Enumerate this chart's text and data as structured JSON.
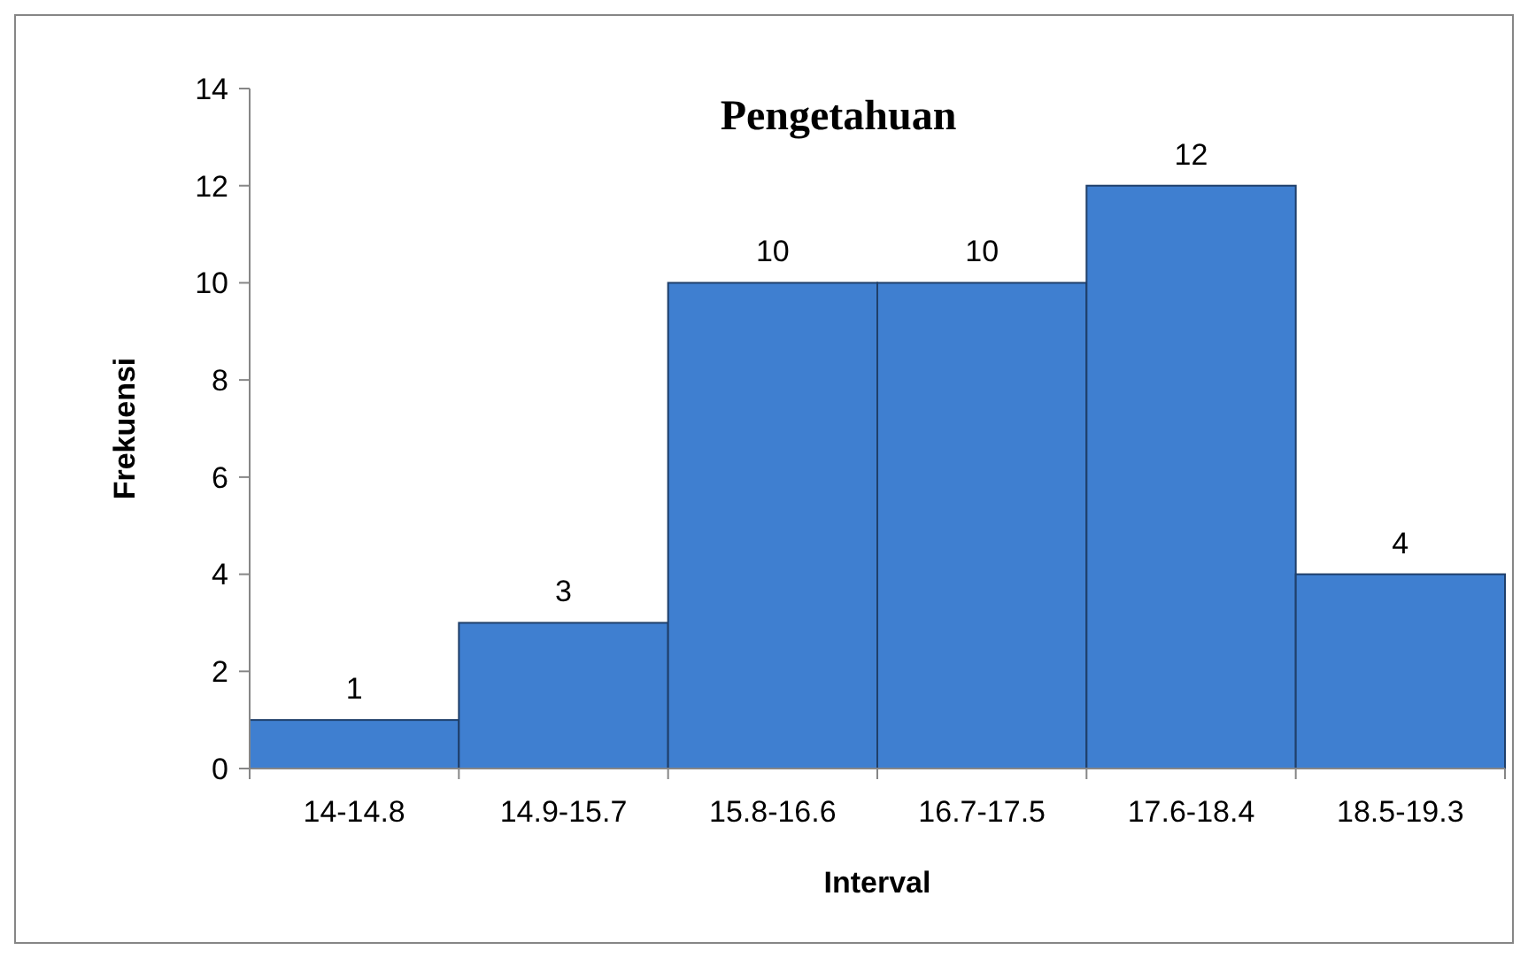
{
  "chart_data": {
    "type": "bar",
    "title": "Pengetahuan",
    "xlabel": "Interval",
    "ylabel": "Frekuensi",
    "categories": [
      "14-14.8",
      "14.9-15.7",
      "15.8-16.6",
      "16.7-17.5",
      "17.6-18.4",
      "18.5-19.3"
    ],
    "values": [
      1,
      3,
      10,
      10,
      12,
      4
    ],
    "color": "#3f7fd0",
    "ylim": [
      0,
      14
    ],
    "yticks": [
      0,
      2,
      4,
      6,
      8,
      10,
      12,
      14
    ],
    "grid": false,
    "data_labels": true
  }
}
